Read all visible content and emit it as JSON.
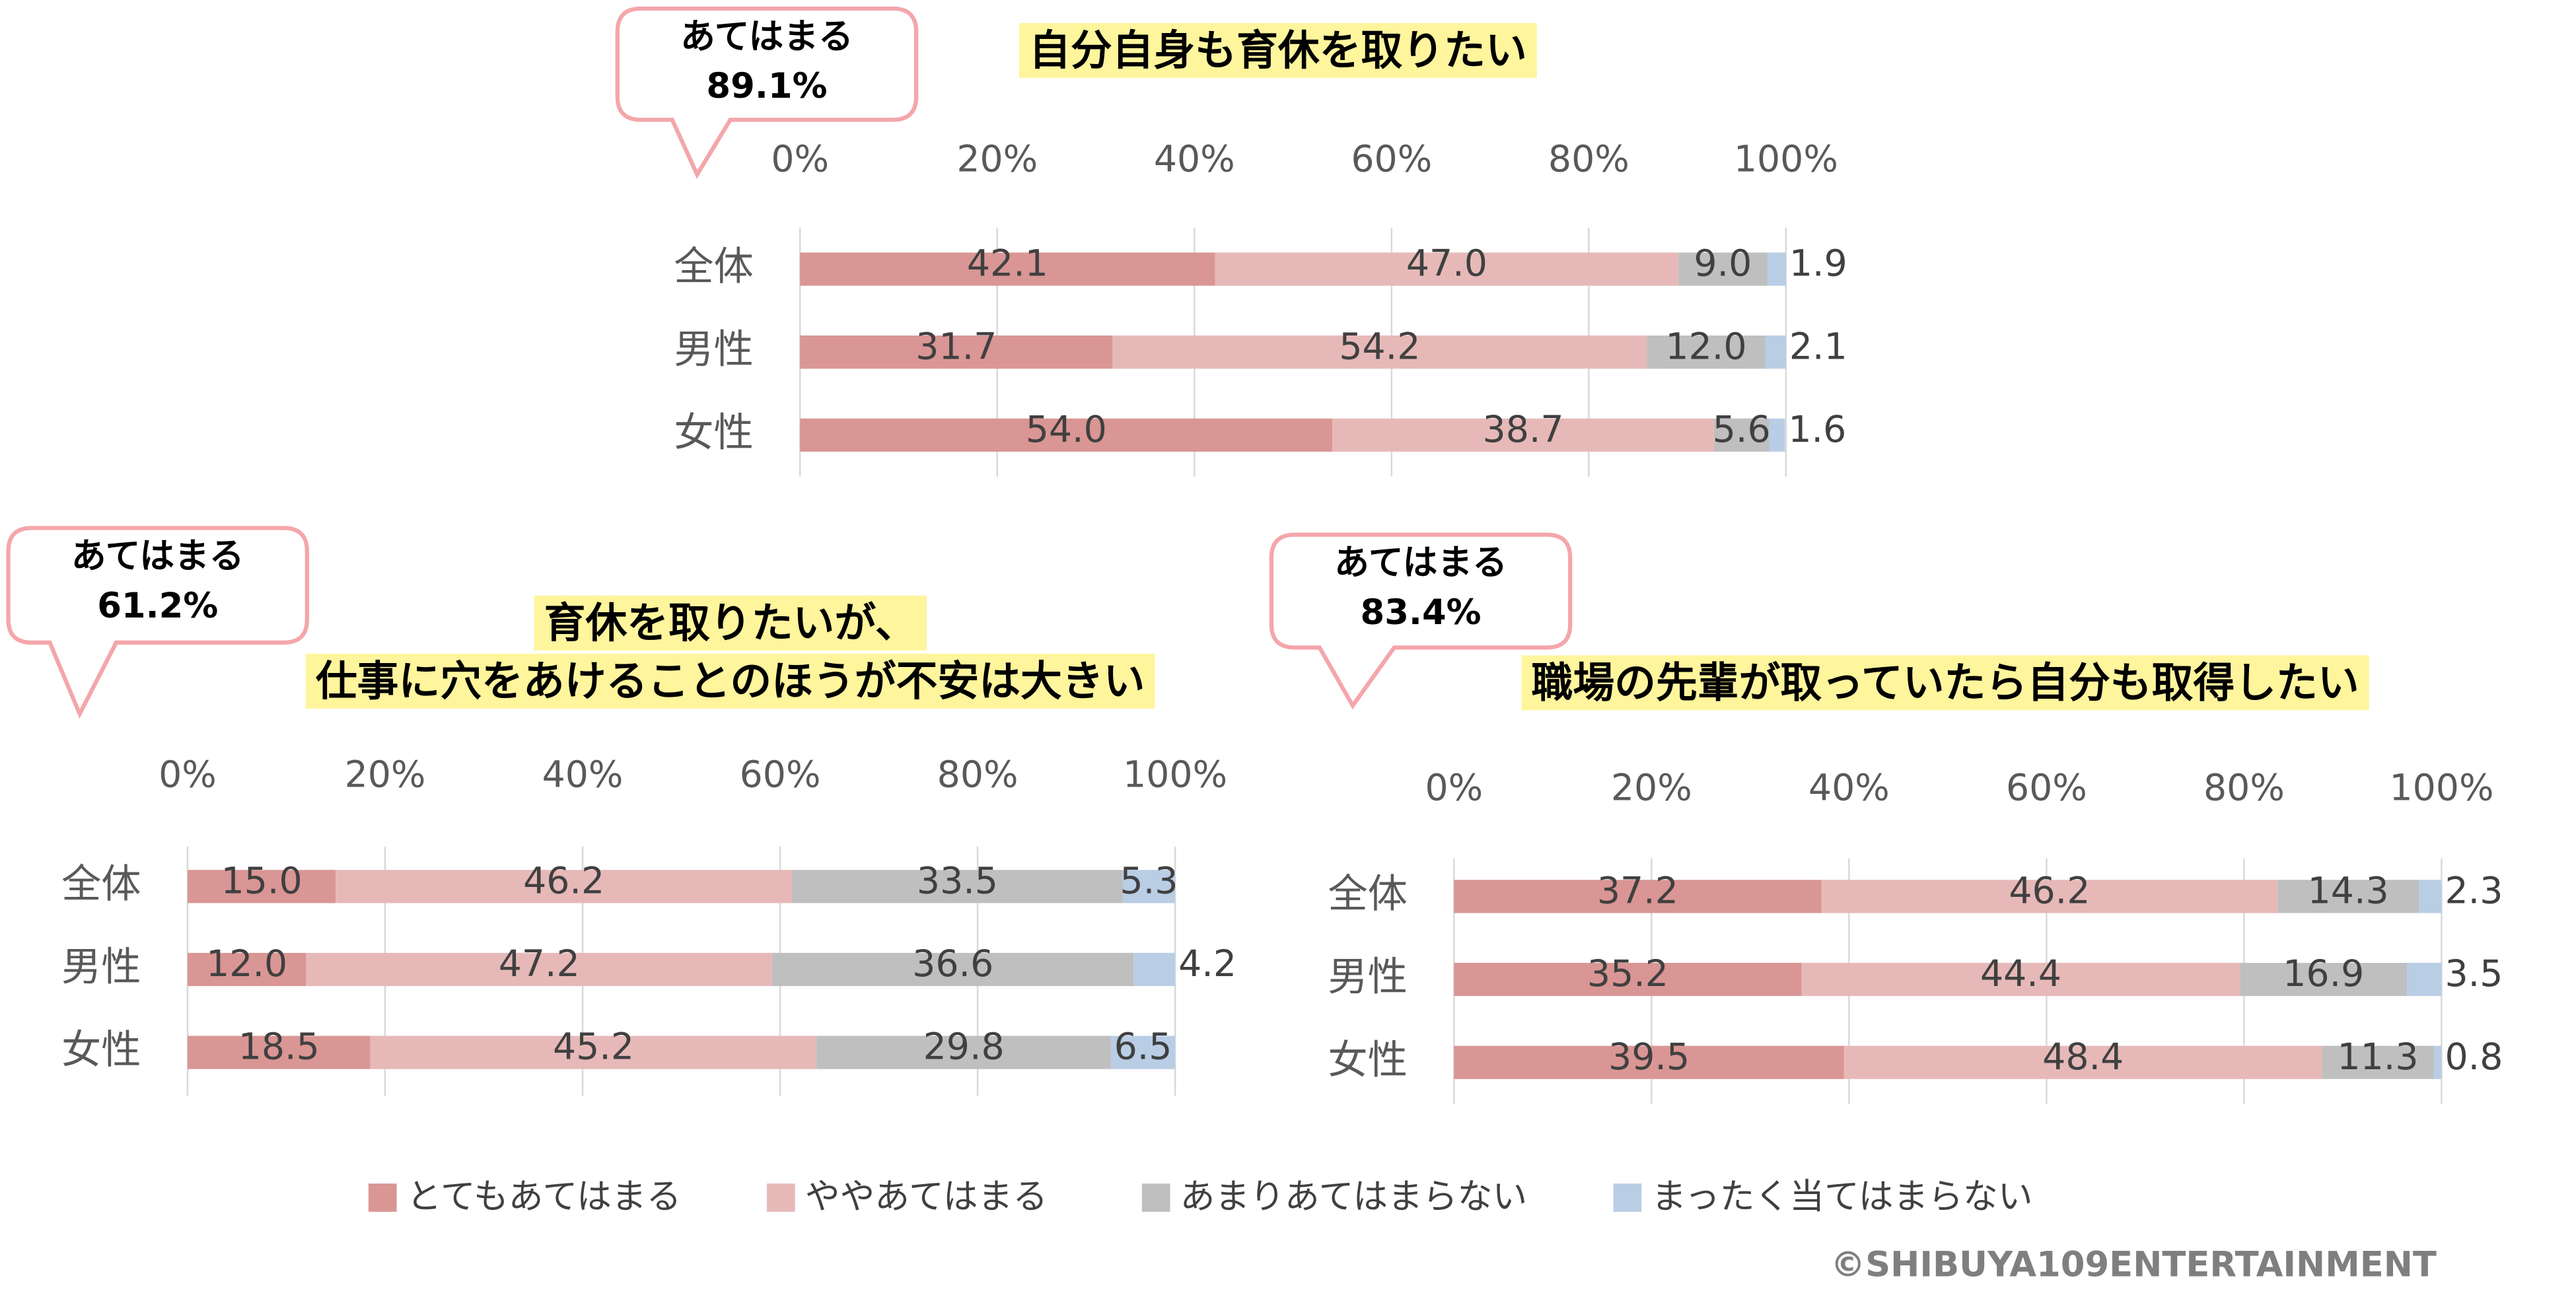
{
  "chart_data": [
    {
      "type": "bar",
      "title": [
        "自分自身も育休を取りたい"
      ],
      "callout": {
        "text": "あてはまる",
        "value_text": "89.1%"
      },
      "categories": [
        "全体",
        "男性",
        "女性"
      ],
      "series": [
        {
          "values": [
            42.1,
            31.7,
            54.0
          ],
          "value_labels": [
            "42.1",
            "31.7",
            "54.0"
          ]
        },
        {
          "values": [
            47.0,
            54.2,
            38.7
          ],
          "value_labels": [
            "47.0",
            "54.2",
            "38.7"
          ]
        },
        {
          "values": [
            9.0,
            12.0,
            5.6
          ],
          "value_labels": [
            "9.0",
            "12.0",
            "5.6"
          ]
        },
        {
          "values": [
            1.9,
            2.1,
            1.6
          ],
          "value_labels": [
            "1.9",
            "2.1",
            "1.6"
          ]
        }
      ],
      "xlim": [
        0,
        100
      ],
      "xticks": [
        {
          "value": 0,
          "label": "0%"
        },
        {
          "value": 20,
          "label": "20%"
        },
        {
          "value": 40,
          "label": "40%"
        },
        {
          "value": 60,
          "label": "60%"
        },
        {
          "value": 80,
          "label": "80%"
        },
        {
          "value": 100,
          "label": "100%"
        }
      ],
      "grid": true
    },
    {
      "type": "bar",
      "title": [
        "育休を取りたいが、",
        "仕事に穴をあけることのほうが不安は大きい"
      ],
      "callout": {
        "text": "あてはまる",
        "value_text": "61.2%"
      },
      "categories": [
        "全体",
        "男性",
        "女性"
      ],
      "series": [
        {
          "values": [
            15.0,
            12.0,
            18.5
          ],
          "value_labels": [
            "15.0",
            "12.0",
            "18.5"
          ]
        },
        {
          "values": [
            46.2,
            47.2,
            45.2
          ],
          "value_labels": [
            "46.2",
            "47.2",
            "45.2"
          ]
        },
        {
          "values": [
            33.5,
            36.6,
            29.8
          ],
          "value_labels": [
            "33.5",
            "36.6",
            "29.8"
          ]
        },
        {
          "values": [
            5.3,
            4.2,
            6.5
          ],
          "value_labels": [
            "5.3",
            "4.2",
            "6.5"
          ]
        }
      ],
      "xlim": [
        0,
        100
      ],
      "xticks": [
        {
          "value": 0,
          "label": "0%"
        },
        {
          "value": 20,
          "label": "20%"
        },
        {
          "value": 40,
          "label": "40%"
        },
        {
          "value": 60,
          "label": "60%"
        },
        {
          "value": 80,
          "label": "80%"
        },
        {
          "value": 100,
          "label": "100%"
        }
      ],
      "grid": true
    },
    {
      "type": "bar",
      "title": [
        "職場の先輩が取っていたら自分も取得したい"
      ],
      "callout": {
        "text": "あてはまる",
        "value_text": "83.4%"
      },
      "categories": [
        "全体",
        "男性",
        "女性"
      ],
      "series": [
        {
          "values": [
            37.2,
            35.2,
            39.5
          ],
          "value_labels": [
            "37.2",
            "35.2",
            "39.5"
          ]
        },
        {
          "values": [
            46.2,
            44.4,
            48.4
          ],
          "value_labels": [
            "46.2",
            "44.4",
            "48.4"
          ]
        },
        {
          "values": [
            14.3,
            16.9,
            11.3
          ],
          "value_labels": [
            "14.3",
            "16.9",
            "11.3"
          ]
        },
        {
          "values": [
            2.3,
            3.5,
            0.8
          ],
          "value_labels": [
            "2.3",
            "3.5",
            "0.8"
          ]
        }
      ],
      "xlim": [
        0,
        100
      ],
      "xticks": [
        {
          "value": 0,
          "label": "0%"
        },
        {
          "value": 20,
          "label": "20%"
        },
        {
          "value": 40,
          "label": "40%"
        },
        {
          "value": 60,
          "label": "60%"
        },
        {
          "value": 80,
          "label": "80%"
        },
        {
          "value": 100,
          "label": "100%"
        }
      ],
      "grid": true
    }
  ],
  "legend": [
    {
      "name": "とてもあてはまる",
      "color": "#d99694"
    },
    {
      "name": "ややあてはまる",
      "color": "#e6b9b8"
    },
    {
      "name": "あまりあてはまらない",
      "color": "#bfbfbf"
    },
    {
      "name": "まったく当てはまらない",
      "color": "#b9cde5"
    }
  ],
  "copyright": "©SHIBUYA109ENTERTAINMENT"
}
